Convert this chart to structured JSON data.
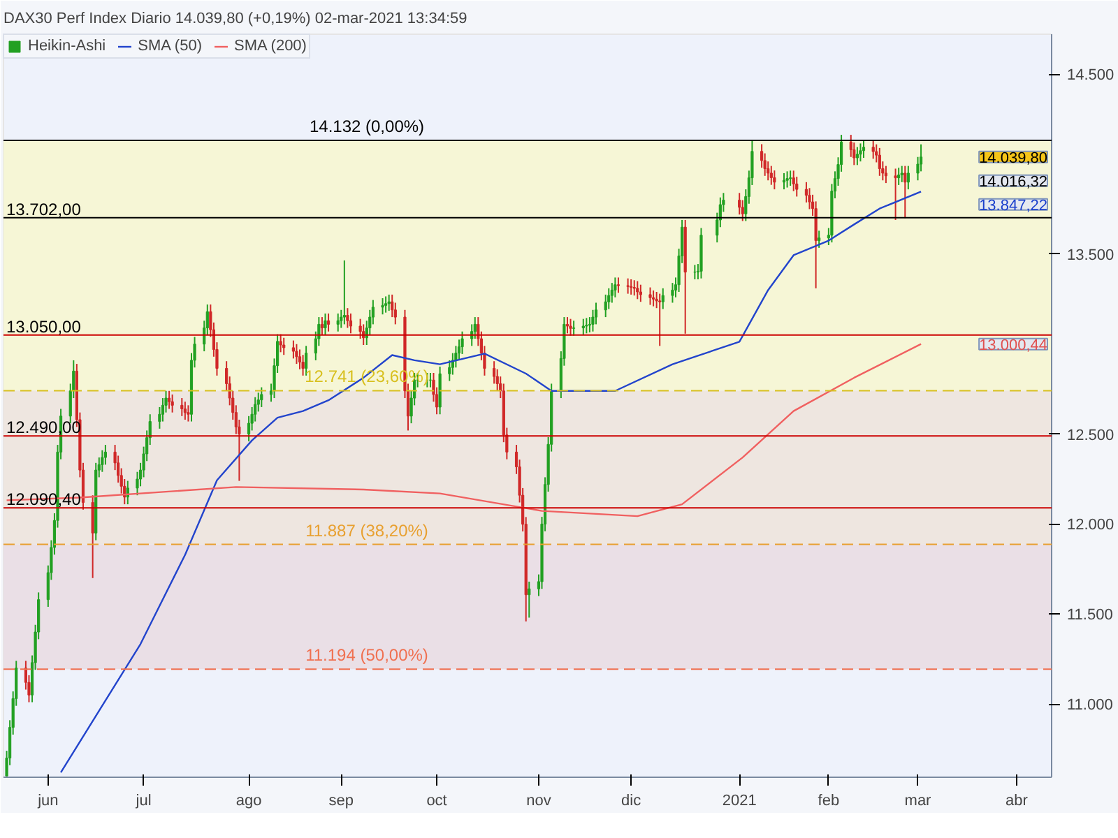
{
  "chart_data": {
    "type": "candlestick",
    "title": "DAX30 Perf Index Diario 14.039,80 (+0,19%) 02-mar-2021 13:34:59",
    "xlim": [
      "2020-05-18",
      "2021-04-12"
    ],
    "xticks": [
      {
        "value": "2020-06-01",
        "label": "jun"
      },
      {
        "value": "2020-07-01",
        "label": "jul"
      },
      {
        "value": "2020-08-03",
        "label": "ago"
      },
      {
        "value": "2020-09-01",
        "label": "sep"
      },
      {
        "value": "2020-10-01",
        "label": "oct"
      },
      {
        "value": "2020-11-02",
        "label": "nov"
      },
      {
        "value": "2020-12-01",
        "label": "dic"
      },
      {
        "value": "2021-01-04",
        "label": "2021"
      },
      {
        "value": "2021-02-01",
        "label": "feb"
      },
      {
        "value": "2021-03-01",
        "label": "mar"
      },
      {
        "value": "2021-04-01",
        "label": "abr"
      }
    ],
    "ylim": [
      10593,
      14722
    ],
    "yticks": [
      {
        "value": 11000,
        "label": "11.000"
      },
      {
        "value": 11500,
        "label": "11.500"
      },
      {
        "value": 12000,
        "label": "12.000"
      },
      {
        "value": 12500,
        "label": "12.500"
      },
      {
        "value": 13500,
        "label": "13.500"
      },
      {
        "value": 14500,
        "label": "14.500"
      }
    ],
    "legend": "top left",
    "bands": [
      {
        "axis": "y",
        "from": 12741,
        "to": 14132,
        "color": "#f6f6d6"
      },
      {
        "axis": "y",
        "from": 11887,
        "to": 12741,
        "color": "#eee6e0"
      },
      {
        "axis": "y",
        "from": 11194,
        "to": 11887,
        "color": "#eadfe6"
      }
    ],
    "ref_lines": [
      {
        "axis": "y",
        "value": 14132,
        "label": "14.132 (0,00%)",
        "color": "#000000",
        "line_style": "solid"
      },
      {
        "axis": "y",
        "value": 13702,
        "label": "13.702,00",
        "color": "#000000"
      },
      {
        "axis": "y",
        "value": 13050,
        "label": "13.050,00",
        "color": "#cc0000"
      },
      {
        "axis": "y",
        "value": 12741,
        "label": "12.741 (23,60%)",
        "color": "#d8c020",
        "line_style": "dashed"
      },
      {
        "axis": "y",
        "value": 12490,
        "label": "12.490,00",
        "color": "#cc0000"
      },
      {
        "axis": "y",
        "value": 12090.4,
        "label": "12.090,40",
        "color": "#cc0000"
      },
      {
        "axis": "y",
        "value": 11887,
        "label": "11.887 (38,20%)",
        "color": "#e8a030",
        "line_style": "dashed"
      },
      {
        "axis": "y",
        "value": 11194,
        "label": "11.194 (50,00%)",
        "color": "#f07050",
        "line_style": "dashed"
      }
    ],
    "annotations": [
      "14.039,80",
      "14.016,32",
      "13.847,22",
      "13.000,44"
    ],
    "series": [
      {
        "name": "Heikin-Ashi",
        "type": "candlestick",
        "colors": [
          "#22a022",
          "#22a022",
          "#22a022",
          "#22a022",
          "#d02828",
          "#d02828",
          "#22a022",
          "#22a022",
          "#22a022",
          "#22a022",
          "#22a022",
          "#22a022",
          "#22a022",
          "#22a022",
          "#22a022",
          "#22a022",
          "#d02828",
          "#d02828",
          "#d02828",
          "#d02828",
          "#22a022",
          "#22a022",
          "#22a022",
          "#22a022",
          "#d02828",
          "#d02828",
          "#d02828",
          "#d02828",
          "#22a022",
          "#22a022",
          "#22a022",
          "#22a022",
          "#22a022",
          "#22a022",
          "#22a022",
          "#22a022",
          "#22a022",
          "#d02828",
          "#d02828",
          "#d02828",
          "#d02828",
          "#d02828",
          "#22a022",
          "#22a022",
          "#22a022",
          "#22a022",
          "#d02828",
          "#d02828",
          "#d02828",
          "#d02828",
          "#d02828",
          "#d02828",
          "#d02828",
          "#d02828",
          "#22a022",
          "#22a022",
          "#22a022",
          "#22a022",
          "#22a022",
          "#22a022",
          "#22a022",
          "#22a022",
          "#d02828",
          "#d02828",
          "#d02828",
          "#d02828",
          "#d02828",
          "#d02828",
          "#22a022",
          "#22a022",
          "#22a022",
          "#d02828",
          "#22a022",
          "#d02828",
          "#22a022",
          "#22a022",
          "#22a022",
          "#d02828",
          "#d02828",
          "#d02828",
          "#d02828",
          "#22a022",
          "#22a022",
          "#22a022",
          "#22a022",
          "#22a022",
          "#22a022",
          "#d02828",
          "#d02828",
          "#d02828",
          "#d02828",
          "#22a022",
          "#22a022",
          "#22a022",
          "#22a022",
          "#22a022",
          "#d02828",
          "#d02828",
          "#22a022",
          "#22a022",
          "#22a022",
          "#22a022",
          "#22a022",
          "#22a022",
          "#22a022",
          "#22a022",
          "#d02828",
          "#d02828",
          "#d02828",
          "#d02828",
          "#d02828",
          "#d02828",
          "#d02828",
          "#d02828",
          "#d02828",
          "#d02828",
          "#d02828",
          "#d02828",
          "#22a022",
          "#22a022",
          "#22a022",
          "#22a022",
          "#22a022",
          "#22a022",
          "#22a022",
          "#22a022",
          "#d02828",
          "#d02828",
          "#22a022",
          "#22a022",
          "#22a022",
          "#22a022",
          "#22a022",
          "#22a022",
          "#22a022",
          "#22a022",
          "#22a022",
          "#22a022",
          "#d02828",
          "#d02828",
          "#d02828",
          "#d02828",
          "#d02828",
          "#d02828",
          "#d02828",
          "#d02828",
          "#d02828",
          "#d02828",
          "#22a022",
          "#22a022",
          "#22a022",
          "#22a022",
          "#22a022",
          "#d02828",
          "#22a022",
          "#22a022",
          "#22a022",
          "#22a022",
          "#22a022",
          "#22a022",
          "#d02828",
          "#d02828",
          "#22a022",
          "#22a022",
          "#22a022",
          "#d02828",
          "#d02828",
          "#d02828",
          "#d02828",
          "#d02828",
          "#22a022",
          "#22a022",
          "#22a022",
          "#d02828",
          "#d02828",
          "#d02828",
          "#d02828",
          "#d02828",
          "#d02828",
          "#22a022",
          "#22a022",
          "#22a022",
          "#22a022",
          "#22a022",
          "#22a022",
          "#d02828",
          "#d02828",
          "#22a022",
          "#22a022",
          "#22a022",
          "#d02828",
          "#d02828",
          "#d02828",
          "#d02828",
          "#d02828",
          "#d02828",
          "#22a022",
          "#22a022",
          "#d02828",
          "#22a022",
          "#22a022",
          "#22a022"
        ],
        "x": [
          "2020-05-19",
          "2020-05-20",
          "2020-05-21",
          "2020-05-22",
          "2020-05-25",
          "2020-05-26",
          "2020-05-27",
          "2020-05-28",
          "2020-05-29",
          "2020-06-01",
          "2020-06-02",
          "2020-06-03",
          "2020-06-04",
          "2020-06-05",
          "2020-06-08",
          "2020-06-09",
          "2020-06-10",
          "2020-06-11",
          "2020-06-12",
          "2020-06-15",
          "2020-06-16",
          "2020-06-17",
          "2020-06-18",
          "2020-06-19",
          "2020-06-22",
          "2020-06-23",
          "2020-06-24",
          "2020-06-25",
          "2020-06-26",
          "2020-06-29",
          "2020-06-30",
          "2020-07-01",
          "2020-07-02",
          "2020-07-03",
          "2020-07-06",
          "2020-07-07",
          "2020-07-08",
          "2020-07-09",
          "2020-07-10",
          "2020-07-13",
          "2020-07-14",
          "2020-07-15",
          "2020-07-16",
          "2020-07-17",
          "2020-07-20",
          "2020-07-21",
          "2020-07-22",
          "2020-07-23",
          "2020-07-24",
          "2020-07-27",
          "2020-07-28",
          "2020-07-29",
          "2020-07-30",
          "2020-07-31",
          "2020-08-03",
          "2020-08-04",
          "2020-08-05",
          "2020-08-06",
          "2020-08-07",
          "2020-08-10",
          "2020-08-11",
          "2020-08-12",
          "2020-08-13",
          "2020-08-14",
          "2020-08-17",
          "2020-08-18",
          "2020-08-19",
          "2020-08-20",
          "2020-08-21",
          "2020-08-24",
          "2020-08-25",
          "2020-08-26",
          "2020-08-27",
          "2020-08-28",
          "2020-08-31",
          "2020-09-01",
          "2020-09-02",
          "2020-09-03",
          "2020-09-04",
          "2020-09-07",
          "2020-09-08",
          "2020-09-09",
          "2020-09-10",
          "2020-09-11",
          "2020-09-14",
          "2020-09-15",
          "2020-09-16",
          "2020-09-17",
          "2020-09-18",
          "2020-09-21",
          "2020-09-22",
          "2020-09-23",
          "2020-09-24",
          "2020-09-25",
          "2020-09-28",
          "2020-09-29",
          "2020-09-30",
          "2020-10-01",
          "2020-10-02",
          "2020-10-05",
          "2020-10-06",
          "2020-10-07",
          "2020-10-08",
          "2020-10-09",
          "2020-10-12",
          "2020-10-13",
          "2020-10-14",
          "2020-10-15",
          "2020-10-16",
          "2020-10-19",
          "2020-10-20",
          "2020-10-21",
          "2020-10-22",
          "2020-10-23",
          "2020-10-26",
          "2020-10-27",
          "2020-10-28",
          "2020-10-29",
          "2020-10-30",
          "2020-11-02",
          "2020-11-03",
          "2020-11-04",
          "2020-11-05",
          "2020-11-06",
          "2020-11-09",
          "2020-11-10",
          "2020-11-11",
          "2020-11-12",
          "2020-11-13",
          "2020-11-16",
          "2020-11-17",
          "2020-11-18",
          "2020-11-19",
          "2020-11-20",
          "2020-11-23",
          "2020-11-24",
          "2020-11-25",
          "2020-11-26",
          "2020-11-27",
          "2020-11-30",
          "2020-12-01",
          "2020-12-02",
          "2020-12-03",
          "2020-12-04",
          "2020-12-07",
          "2020-12-08",
          "2020-12-09",
          "2020-12-10",
          "2020-12-11",
          "2020-12-14",
          "2020-12-15",
          "2020-12-16",
          "2020-12-17",
          "2020-12-18",
          "2020-12-21",
          "2020-12-22",
          "2020-12-23",
          "2020-12-28",
          "2020-12-29",
          "2020-12-30",
          "2021-01-04",
          "2021-01-05",
          "2021-01-06",
          "2021-01-07",
          "2021-01-08",
          "2021-01-11",
          "2021-01-12",
          "2021-01-13",
          "2021-01-14",
          "2021-01-15",
          "2021-01-18",
          "2021-01-19",
          "2021-01-20",
          "2021-01-21",
          "2021-01-22",
          "2021-01-25",
          "2021-01-26",
          "2021-01-27",
          "2021-01-28",
          "2021-01-29",
          "2021-02-01",
          "2021-02-02",
          "2021-02-03",
          "2021-02-04",
          "2021-02-05",
          "2021-02-08",
          "2021-02-09",
          "2021-02-10",
          "2021-02-11",
          "2021-02-12",
          "2021-02-15",
          "2021-02-16",
          "2021-02-17",
          "2021-02-18",
          "2021-02-19",
          "2021-02-22",
          "2021-02-23",
          "2021-02-24",
          "2021-02-25",
          "2021-02-26",
          "2021-03-01",
          "2021-03-02"
        ],
        "ohlc": [
          [
            10600,
            10740,
            10600,
            10700
          ],
          [
            10700,
            10910,
            10660,
            10870
          ],
          [
            10870,
            11070,
            10830,
            11030
          ],
          [
            11030,
            11240,
            10990,
            11200
          ],
          [
            11200,
            11240,
            11080,
            11120
          ],
          [
            11120,
            11160,
            11010,
            11050
          ],
          [
            11050,
            11270,
            11010,
            11230
          ],
          [
            11230,
            11440,
            11190,
            11400
          ],
          [
            11400,
            11620,
            11360,
            11580
          ],
          [
            11580,
            11770,
            11540,
            11730
          ],
          [
            11730,
            11910,
            11690,
            11870
          ],
          [
            11870,
            12060,
            11830,
            12020
          ],
          [
            12020,
            12440,
            11980,
            12400
          ],
          [
            12400,
            12640,
            12360,
            12600
          ],
          [
            12600,
            12780,
            12560,
            12740
          ],
          [
            12740,
            12910,
            12700,
            12850
          ],
          [
            12850,
            12890,
            12540,
            12580
          ],
          [
            12580,
            12620,
            12260,
            12300
          ],
          [
            12300,
            12340,
            12080,
            12120
          ],
          [
            12120,
            12160,
            11700,
            11950
          ],
          [
            11950,
            12340,
            11910,
            12300
          ],
          [
            12300,
            12370,
            12260,
            12330
          ],
          [
            12330,
            12410,
            12290,
            12370
          ],
          [
            12370,
            12440,
            12330,
            12400
          ],
          [
            12400,
            12440,
            12300,
            12340
          ],
          [
            12340,
            12380,
            12230,
            12270
          ],
          [
            12270,
            12310,
            12170,
            12210
          ],
          [
            12210,
            12250,
            12110,
            12150
          ],
          [
            12150,
            12240,
            12110,
            12200
          ],
          [
            12200,
            12290,
            12160,
            12250
          ],
          [
            12250,
            12340,
            12210,
            12300
          ],
          [
            12300,
            12430,
            12260,
            12390
          ],
          [
            12390,
            12520,
            12350,
            12480
          ],
          [
            12480,
            12610,
            12440,
            12570
          ],
          [
            12570,
            12650,
            12530,
            12610
          ],
          [
            12610,
            12700,
            12570,
            12660
          ],
          [
            12660,
            12740,
            12620,
            12700
          ],
          [
            12700,
            12740,
            12640,
            12680
          ],
          [
            12680,
            12720,
            12620,
            12660
          ],
          [
            12660,
            12700,
            12600,
            12640
          ],
          [
            12640,
            12680,
            12580,
            12620
          ],
          [
            12620,
            12660,
            12570,
            12610
          ],
          [
            12610,
            12950,
            12570,
            12910
          ],
          [
            12910,
            13040,
            12870,
            13000
          ],
          [
            13000,
            13130,
            12960,
            13090
          ],
          [
            13090,
            13220,
            13050,
            13180
          ],
          [
            13180,
            13220,
            13040,
            13080
          ],
          [
            13080,
            13120,
            12930,
            12970
          ],
          [
            12970,
            13010,
            12825,
            12865
          ],
          [
            12865,
            12905,
            12740,
            12780
          ],
          [
            12780,
            12820,
            12660,
            12700
          ],
          [
            12700,
            12740,
            12580,
            12620
          ],
          [
            12620,
            12660,
            12500,
            12540
          ],
          [
            12540,
            12580,
            12240,
            12500
          ],
          [
            12500,
            12600,
            12460,
            12560
          ],
          [
            12560,
            12650,
            12520,
            12610
          ],
          [
            12610,
            12705,
            12570,
            12665
          ],
          [
            12665,
            12730,
            12625,
            12690
          ],
          [
            12690,
            12760,
            12650,
            12720
          ],
          [
            12720,
            12780,
            12680,
            12740
          ],
          [
            12740,
            12920,
            12700,
            12880
          ],
          [
            12880,
            13055,
            12840,
            13015
          ],
          [
            13015,
            13055,
            12955,
            12995
          ],
          [
            12995,
            13035,
            12940,
            12980
          ],
          [
            12980,
            13020,
            12920,
            12960
          ],
          [
            12960,
            13000,
            12890,
            12930
          ],
          [
            12930,
            12970,
            12860,
            12900
          ],
          [
            12900,
            12940,
            12825,
            12865
          ],
          [
            12865,
            12990,
            12825,
            12950
          ],
          [
            12950,
            13070,
            12910,
            13030
          ],
          [
            13030,
            13150,
            12990,
            13110
          ],
          [
            13110,
            13150,
            13050,
            13090
          ],
          [
            13090,
            13170,
            13050,
            13130
          ],
          [
            13130,
            13170,
            13070,
            13110
          ],
          [
            13110,
            13170,
            13070,
            13130
          ],
          [
            13130,
            13190,
            13090,
            13150
          ],
          [
            13150,
            13465,
            13110,
            13160
          ],
          [
            13160,
            13200,
            13090,
            13130
          ],
          [
            13130,
            13170,
            13060,
            13100
          ],
          [
            13100,
            13140,
            13030,
            13070
          ],
          [
            13070,
            13110,
            12995,
            13035
          ],
          [
            13035,
            13130,
            12995,
            13090
          ],
          [
            13090,
            13190,
            13050,
            13150
          ],
          [
            13150,
            13245,
            13110,
            13205
          ],
          [
            13205,
            13255,
            13165,
            13215
          ],
          [
            13215,
            13265,
            13175,
            13225
          ],
          [
            13225,
            13275,
            13185,
            13235
          ],
          [
            13235,
            13275,
            13150,
            13190
          ],
          [
            13190,
            13230,
            13110,
            13150
          ],
          [
            13150,
            13190,
            12700,
            12740
          ],
          [
            12740,
            12780,
            12520,
            12600
          ],
          [
            12600,
            12740,
            12560,
            12700
          ],
          [
            12700,
            12840,
            12660,
            12800
          ],
          [
            12800,
            12840,
            12760,
            12800
          ],
          [
            12800,
            12840,
            12760,
            12800
          ],
          [
            12800,
            12840,
            12760,
            12800
          ],
          [
            12800,
            12840,
            12680,
            12720
          ],
          [
            12720,
            12760,
            12610,
            12650
          ],
          [
            12650,
            12875,
            12610,
            12835
          ],
          [
            12835,
            12910,
            12795,
            12870
          ],
          [
            12870,
            12950,
            12830,
            12910
          ],
          [
            12910,
            12990,
            12870,
            12950
          ],
          [
            12950,
            13025,
            12910,
            12985
          ],
          [
            12985,
            13070,
            12945,
            13030
          ],
          [
            13030,
            13110,
            12990,
            13070
          ],
          [
            13070,
            13150,
            13030,
            13110
          ],
          [
            13110,
            13150,
            12990,
            13030
          ],
          [
            13030,
            13070,
            12910,
            12950
          ],
          [
            12950,
            12990,
            12825,
            12865
          ],
          [
            12865,
            12905,
            12780,
            12820
          ],
          [
            12820,
            12860,
            12740,
            12780
          ],
          [
            12780,
            12820,
            12700,
            12740
          ],
          [
            12740,
            12780,
            12455,
            12495
          ],
          [
            12495,
            12535,
            12360,
            12400
          ],
          [
            12400,
            12440,
            12278,
            12318
          ],
          [
            12318,
            12358,
            12120,
            12160
          ],
          [
            12160,
            12200,
            11959,
            11999
          ],
          [
            11999,
            12039,
            11459,
            11607
          ],
          [
            11607,
            11680,
            11480,
            11640
          ],
          [
            11640,
            11720,
            11600,
            11680
          ],
          [
            11680,
            12040,
            11640,
            12000
          ],
          [
            12000,
            12260,
            11960,
            12220
          ],
          [
            12220,
            12483,
            12180,
            12443
          ],
          [
            12443,
            12780,
            12403,
            12740
          ],
          [
            12740,
            12960,
            12700,
            12920
          ],
          [
            12920,
            13150,
            12880,
            13110
          ],
          [
            13110,
            13150,
            13060,
            13100
          ],
          [
            13100,
            13140,
            13047,
            13087
          ],
          [
            13087,
            13130,
            13047,
            13090
          ],
          [
            13090,
            13140,
            13050,
            13100
          ],
          [
            13100,
            13145,
            13060,
            13105
          ],
          [
            13105,
            13150,
            13065,
            13110
          ],
          [
            13110,
            13190,
            13070,
            13150
          ],
          [
            13150,
            13230,
            13110,
            13190
          ],
          [
            13190,
            13275,
            13150,
            13235
          ],
          [
            13235,
            13310,
            13195,
            13270
          ],
          [
            13270,
            13340,
            13230,
            13300
          ],
          [
            13300,
            13370,
            13260,
            13330
          ],
          [
            13330,
            13370,
            13285,
            13325
          ],
          [
            13325,
            13365,
            13280,
            13320
          ],
          [
            13320,
            13360,
            13275,
            13315
          ],
          [
            13315,
            13355,
            13270,
            13310
          ],
          [
            13310,
            13350,
            13250,
            13290
          ],
          [
            13290,
            13330,
            13235,
            13275
          ],
          [
            13275,
            13315,
            13218,
            13258
          ],
          [
            13258,
            13298,
            13210,
            13250
          ],
          [
            13250,
            13290,
            13200,
            13240
          ],
          [
            13240,
            13280,
            12990,
            13235
          ],
          [
            13235,
            13310,
            13195,
            13270
          ],
          [
            13270,
            13340,
            13230,
            13300
          ],
          [
            13300,
            13370,
            13260,
            13330
          ],
          [
            13330,
            13530,
            13290,
            13490
          ],
          [
            13490,
            13690,
            13450,
            13650
          ],
          [
            13650,
            13690,
            13058,
            13400
          ],
          [
            13400,
            13440,
            13360,
            13400
          ],
          [
            13400,
            13445,
            13360,
            13405
          ],
          [
            13405,
            13645,
            13365,
            13605
          ],
          [
            13605,
            13730,
            13565,
            13690
          ],
          [
            13690,
            13815,
            13650,
            13775
          ],
          [
            13775,
            13840,
            13735,
            13800
          ],
          [
            13800,
            13840,
            13720,
            13760
          ],
          [
            13760,
            13800,
            13684,
            13724
          ],
          [
            13724,
            13860,
            13684,
            13820
          ],
          [
            13820,
            13964,
            13780,
            13924
          ],
          [
            13924,
            14130,
            13884,
            14071
          ],
          [
            14071,
            14111,
            13980,
            14020
          ],
          [
            14020,
            14060,
            13935,
            13975
          ],
          [
            13975,
            14015,
            13910,
            13950
          ],
          [
            13950,
            13990,
            13885,
            13925
          ],
          [
            13925,
            13965,
            13860,
            13900
          ],
          [
            13900,
            13950,
            13860,
            13910
          ],
          [
            13910,
            13960,
            13870,
            13920
          ],
          [
            13920,
            13964,
            13880,
            13924
          ],
          [
            13924,
            13964,
            13850,
            13890
          ],
          [
            13890,
            13930,
            13820,
            13860
          ],
          [
            13860,
            13900,
            13787,
            13827
          ],
          [
            13827,
            13867,
            13750,
            13790
          ],
          [
            13790,
            13830,
            13713,
            13753
          ],
          [
            13753,
            13793,
            13310,
            13575
          ],
          [
            13575,
            13630,
            13535,
            13590
          ],
          [
            13590,
            13645,
            13550,
            13605
          ],
          [
            13605,
            13890,
            13565,
            13850
          ],
          [
            13850,
            13960,
            13810,
            13920
          ],
          [
            13920,
            14038,
            13880,
            13998
          ],
          [
            13998,
            14163,
            13958,
            14123
          ],
          [
            14123,
            14163,
            14040,
            14080
          ],
          [
            14080,
            14120,
            13995,
            14035
          ],
          [
            14035,
            14095,
            13995,
            14055
          ],
          [
            14055,
            14115,
            14015,
            14075
          ],
          [
            14075,
            14134,
            14035,
            14094
          ],
          [
            14094,
            14134,
            14030,
            14070
          ],
          [
            14070,
            14110,
            14010,
            14050
          ],
          [
            14050,
            14090,
            13935,
            13975
          ],
          [
            13975,
            14015,
            13910,
            13950
          ],
          [
            13950,
            13990,
            13895,
            13935
          ],
          [
            13935,
            13975,
            13690,
            13924
          ],
          [
            13924,
            13980,
            13884,
            13940
          ],
          [
            13940,
            13990,
            13900,
            13950
          ],
          [
            13950,
            13990,
            13700,
            13900
          ],
          [
            13900,
            13990,
            13860,
            13950
          ],
          [
            13950,
            14040,
            13910,
            14000
          ],
          [
            14000,
            14110,
            13960,
            14039.8
          ]
        ]
      },
      {
        "name": "SMA (50)",
        "type": "line",
        "color": "#2244cc",
        "x": [
          "2020-06-05",
          "2020-06-30",
          "2020-07-14",
          "2020-07-24",
          "2020-08-04",
          "2020-08-12",
          "2020-08-20",
          "2020-08-28",
          "2020-09-08",
          "2020-09-17",
          "2020-09-24",
          "2020-10-02",
          "2020-10-16",
          "2020-10-29",
          "2020-11-06",
          "2020-11-26",
          "2020-12-14",
          "2021-01-04",
          "2021-01-13",
          "2021-01-21",
          "2021-02-01",
          "2021-02-09",
          "2021-02-17",
          "2021-03-02"
        ],
        "values": [
          10620,
          11333,
          11829,
          12243,
          12465,
          12591,
          12628,
          12688,
          12813,
          12939,
          12910,
          12888,
          12947,
          12836,
          12740,
          12740,
          12888,
          13013,
          13300,
          13494,
          13575,
          13665,
          13753,
          13847.22
        ]
      },
      {
        "name": "SMA (200)",
        "type": "line",
        "color": "#f06060",
        "x": [
          "2020-05-19",
          "2020-06-11",
          "2020-07-30",
          "2020-09-08",
          "2020-10-02",
          "2020-11-03",
          "2020-12-03",
          "2020-12-17",
          "2021-01-05",
          "2021-01-21",
          "2021-02-09",
          "2021-03-02"
        ],
        "values": [
          12132,
          12147,
          12206,
          12192,
          12170,
          12073,
          12044,
          12110,
          12370,
          12628,
          12813,
          13000.44
        ]
      }
    ]
  }
}
